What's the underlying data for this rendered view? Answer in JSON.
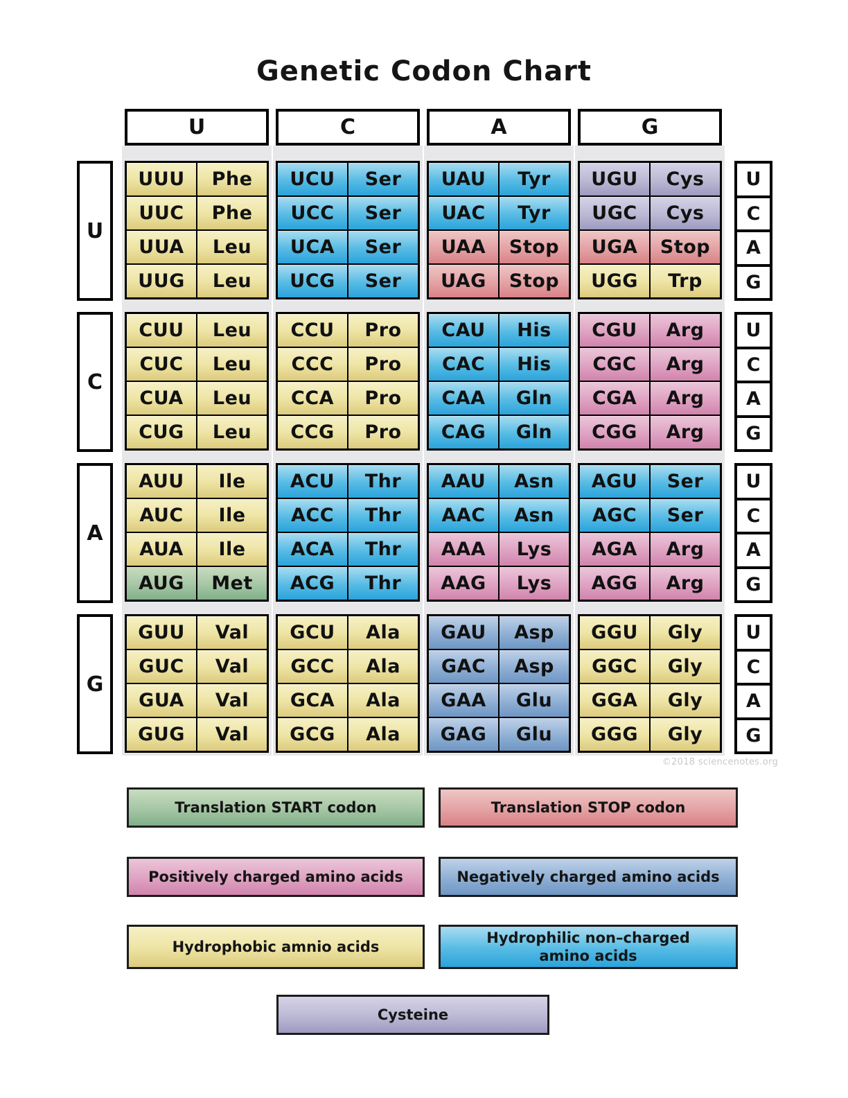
{
  "title": "Genetic Codon Chart",
  "watermark": "©2018 sciencenotes.org",
  "column_headers": [
    "U",
    "C",
    "A",
    "G"
  ],
  "right_labels": [
    "U",
    "C",
    "A",
    "G"
  ],
  "colors": {
    "hydrophobic": "#EADFA0",
    "hydrophilic": "#3FAEDE",
    "positive": "#DA9BBD",
    "negative": "#7FA5CE",
    "stop": "#E19598",
    "start": "#94BB96",
    "cysteine": "#ABA8C9",
    "strip_gray": "#E7E7E9"
  },
  "rows": [
    {
      "label": "U",
      "blocks": [
        {
          "cells": [
            {
              "codon": "UUU",
              "aa": "Phe",
              "type": "hydrophobic"
            },
            {
              "codon": "UUC",
              "aa": "Phe",
              "type": "hydrophobic"
            },
            {
              "codon": "UUA",
              "aa": "Leu",
              "type": "hydrophobic"
            },
            {
              "codon": "UUG",
              "aa": "Leu",
              "type": "hydrophobic"
            }
          ]
        },
        {
          "cells": [
            {
              "codon": "UCU",
              "aa": "Ser",
              "type": "hydrophilic"
            },
            {
              "codon": "UCC",
              "aa": "Ser",
              "type": "hydrophilic"
            },
            {
              "codon": "UCA",
              "aa": "Ser",
              "type": "hydrophilic"
            },
            {
              "codon": "UCG",
              "aa": "Ser",
              "type": "hydrophilic"
            }
          ]
        },
        {
          "cells": [
            {
              "codon": "UAU",
              "aa": "Tyr",
              "type": "hydrophilic"
            },
            {
              "codon": "UAC",
              "aa": "Tyr",
              "type": "hydrophilic"
            },
            {
              "codon": "UAA",
              "aa": "Stop",
              "type": "stop"
            },
            {
              "codon": "UAG",
              "aa": "Stop",
              "type": "stop"
            }
          ]
        },
        {
          "cells": [
            {
              "codon": "UGU",
              "aa": "Cys",
              "type": "cysteine"
            },
            {
              "codon": "UGC",
              "aa": "Cys",
              "type": "cysteine"
            },
            {
              "codon": "UGA",
              "aa": "Stop",
              "type": "stop"
            },
            {
              "codon": "UGG",
              "aa": "Trp",
              "type": "hydrophobic"
            }
          ]
        }
      ]
    },
    {
      "label": "C",
      "blocks": [
        {
          "cells": [
            {
              "codon": "CUU",
              "aa": "Leu",
              "type": "hydrophobic"
            },
            {
              "codon": "CUC",
              "aa": "Leu",
              "type": "hydrophobic"
            },
            {
              "codon": "CUA",
              "aa": "Leu",
              "type": "hydrophobic"
            },
            {
              "codon": "CUG",
              "aa": "Leu",
              "type": "hydrophobic"
            }
          ]
        },
        {
          "cells": [
            {
              "codon": "CCU",
              "aa": "Pro",
              "type": "hydrophobic"
            },
            {
              "codon": "CCC",
              "aa": "Pro",
              "type": "hydrophobic"
            },
            {
              "codon": "CCA",
              "aa": "Pro",
              "type": "hydrophobic"
            },
            {
              "codon": "CCG",
              "aa": "Pro",
              "type": "hydrophobic"
            }
          ]
        },
        {
          "cells": [
            {
              "codon": "CAU",
              "aa": "His",
              "type": "hydrophilic"
            },
            {
              "codon": "CAC",
              "aa": "His",
              "type": "hydrophilic"
            },
            {
              "codon": "CAA",
              "aa": "Gln",
              "type": "hydrophilic"
            },
            {
              "codon": "CAG",
              "aa": "Gln",
              "type": "hydrophilic"
            }
          ]
        },
        {
          "cells": [
            {
              "codon": "CGU",
              "aa": "Arg",
              "type": "positive"
            },
            {
              "codon": "CGC",
              "aa": "Arg",
              "type": "positive"
            },
            {
              "codon": "CGA",
              "aa": "Arg",
              "type": "positive"
            },
            {
              "codon": "CGG",
              "aa": "Arg",
              "type": "positive"
            }
          ]
        }
      ]
    },
    {
      "label": "A",
      "blocks": [
        {
          "cells": [
            {
              "codon": "AUU",
              "aa": "Ile",
              "type": "hydrophobic"
            },
            {
              "codon": "AUC",
              "aa": "Ile",
              "type": "hydrophobic"
            },
            {
              "codon": "AUA",
              "aa": "Ile",
              "type": "hydrophobic"
            },
            {
              "codon": "AUG",
              "aa": "Met",
              "type": "start"
            }
          ]
        },
        {
          "cells": [
            {
              "codon": "ACU",
              "aa": "Thr",
              "type": "hydrophilic"
            },
            {
              "codon": "ACC",
              "aa": "Thr",
              "type": "hydrophilic"
            },
            {
              "codon": "ACA",
              "aa": "Thr",
              "type": "hydrophilic"
            },
            {
              "codon": "ACG",
              "aa": "Thr",
              "type": "hydrophilic"
            }
          ]
        },
        {
          "cells": [
            {
              "codon": "AAU",
              "aa": "Asn",
              "type": "hydrophilic"
            },
            {
              "codon": "AAC",
              "aa": "Asn",
              "type": "hydrophilic"
            },
            {
              "codon": "AAA",
              "aa": "Lys",
              "type": "positive"
            },
            {
              "codon": "AAG",
              "aa": "Lys",
              "type": "positive"
            }
          ]
        },
        {
          "cells": [
            {
              "codon": "AGU",
              "aa": "Ser",
              "type": "hydrophilic"
            },
            {
              "codon": "AGC",
              "aa": "Ser",
              "type": "hydrophilic"
            },
            {
              "codon": "AGA",
              "aa": "Arg",
              "type": "positive"
            },
            {
              "codon": "AGG",
              "aa": "Arg",
              "type": "positive"
            }
          ]
        }
      ]
    },
    {
      "label": "G",
      "blocks": [
        {
          "cells": [
            {
              "codon": "GUU",
              "aa": "Val",
              "type": "hydrophobic"
            },
            {
              "codon": "GUC",
              "aa": "Val",
              "type": "hydrophobic"
            },
            {
              "codon": "GUA",
              "aa": "Val",
              "type": "hydrophobic"
            },
            {
              "codon": "GUG",
              "aa": "Val",
              "type": "hydrophobic"
            }
          ]
        },
        {
          "cells": [
            {
              "codon": "GCU",
              "aa": "Ala",
              "type": "hydrophobic"
            },
            {
              "codon": "GCC",
              "aa": "Ala",
              "type": "hydrophobic"
            },
            {
              "codon": "GCA",
              "aa": "Ala",
              "type": "hydrophobic"
            },
            {
              "codon": "GCG",
              "aa": "Ala",
              "type": "hydrophobic"
            }
          ]
        },
        {
          "cells": [
            {
              "codon": "GAU",
              "aa": "Asp",
              "type": "negative"
            },
            {
              "codon": "GAC",
              "aa": "Asp",
              "type": "negative"
            },
            {
              "codon": "GAA",
              "aa": "Glu",
              "type": "negative"
            },
            {
              "codon": "GAG",
              "aa": "Glu",
              "type": "negative"
            }
          ]
        },
        {
          "cells": [
            {
              "codon": "GGU",
              "aa": "Gly",
              "type": "hydrophobic"
            },
            {
              "codon": "GGC",
              "aa": "Gly",
              "type": "hydrophobic"
            },
            {
              "codon": "GGA",
              "aa": "Gly",
              "type": "hydrophobic"
            },
            {
              "codon": "GGG",
              "aa": "Gly",
              "type": "hydrophobic"
            }
          ]
        }
      ]
    }
  ],
  "legend": {
    "items": [
      {
        "label": "Translation START codon",
        "type": "start"
      },
      {
        "label": "Translation STOP codon",
        "type": "stop"
      },
      {
        "label": "Positively charged amino acids",
        "type": "positive"
      },
      {
        "label": "Negatively charged amino acids",
        "type": "negative"
      },
      {
        "label": "Hydrophobic amnio acids",
        "type": "hydrophobic"
      },
      {
        "label": "Hydrophilic non–charged amino acids",
        "type": "hydrophilic"
      },
      {
        "label": "Cysteine",
        "type": "cysteine"
      }
    ]
  }
}
